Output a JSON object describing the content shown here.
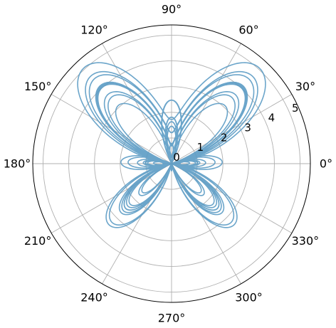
{
  "chart_data": {
    "type": "line",
    "projection": "polar",
    "title": "",
    "equation": "r = e^{sin(theta)} - 2 cos(4 theta) + sin^5((2 theta - pi)/24)",
    "theta_range_turns": [
      0,
      12
    ],
    "samples": 6000,
    "series": [
      {
        "color": "#5b9bc4",
        "opacity": 0.9
      }
    ],
    "angular_ticks_deg": [
      0,
      30,
      60,
      90,
      120,
      150,
      180,
      210,
      240,
      270,
      300,
      330
    ],
    "angular_tick_labels": [
      "0°",
      "30°",
      "60°",
      "90°",
      "120°",
      "150°",
      "180°",
      "210°",
      "240°",
      "270°",
      "300°",
      "330°"
    ],
    "radial_ticks": [
      0,
      1,
      2,
      3,
      4,
      5
    ],
    "radial_tick_labels": [
      "0",
      "1",
      "2",
      "3",
      "4",
      "5"
    ],
    "rlim": [
      0,
      5.4
    ],
    "radial_label_angle_deg": 22.5,
    "grid": true,
    "grid_color": "#b0b0b0",
    "frame_color": "#000000",
    "legend": "none"
  }
}
